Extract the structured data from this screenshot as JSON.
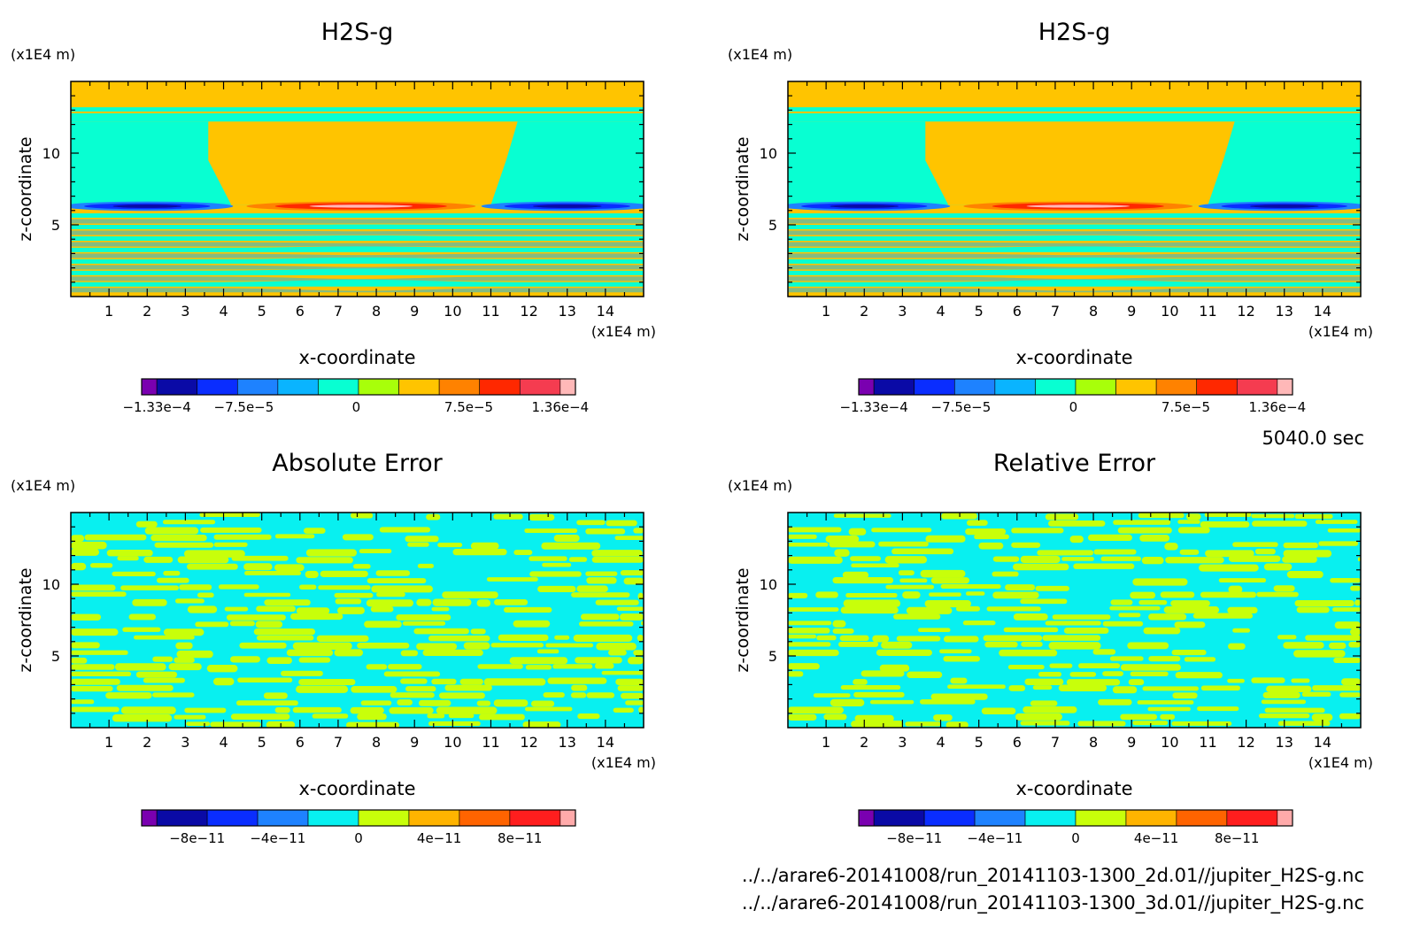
{
  "time_label": "5040.0 sec",
  "files": [
    "../../arare6-20141008/run_20141103-1300_2d.01//jupiter_H2S-g.nc",
    "../../arare6-20141008/run_20141103-1300_3d.01//jupiter_H2S-g.nc"
  ],
  "colors": {
    "levels": [
      "#7a00b0",
      "#0a0aa6",
      "#0a2dff",
      "#1e82ff",
      "#0ab4ff",
      "#08ffd2",
      "#a8ff0a",
      "#ffc400",
      "#ff8200",
      "#ff2800",
      "#f53c50",
      "#ffb8b8"
    ],
    "error_levels": [
      "#7a00b0",
      "#0a0aa6",
      "#0a2dff",
      "#1e82ff",
      "#08f0f0",
      "#c8ff0a",
      "#ffb400",
      "#ff6400",
      "#ff1e1e",
      "#ffaaaa"
    ]
  },
  "chart_data": [
    {
      "type": "heatmap",
      "title": "H2S-g",
      "xlabel": "x-coordinate",
      "ylabel": "z-coordinate",
      "x_unit": "(x1E4 m)",
      "y_unit": "(x1E4 m)",
      "xlim": [
        0,
        15
      ],
      "ylim": [
        0,
        15
      ],
      "x_ticks": [
        "1",
        "2",
        "3",
        "4",
        "5",
        "6",
        "7",
        "8",
        "9",
        "10",
        "11",
        "12",
        "13",
        "14"
      ],
      "y_ticks": [
        "5",
        "10"
      ],
      "colorbar_labels": [
        "-1.33e-4",
        "-7.5e-5",
        "0",
        "7.5e-5",
        "1.36e-4"
      ],
      "range": [
        -0.000133,
        0.000136
      ]
    },
    {
      "type": "heatmap",
      "title": "H2S-g",
      "xlabel": "x-coordinate",
      "ylabel": "z-coordinate",
      "x_unit": "(x1E4 m)",
      "y_unit": "(x1E4 m)",
      "xlim": [
        0,
        15
      ],
      "ylim": [
        0,
        15
      ],
      "x_ticks": [
        "1",
        "2",
        "3",
        "4",
        "5",
        "6",
        "7",
        "8",
        "9",
        "10",
        "11",
        "12",
        "13",
        "14"
      ],
      "y_ticks": [
        "5",
        "10"
      ],
      "colorbar_labels": [
        "-1.33e-4",
        "-7.5e-5",
        "0",
        "7.5e-5",
        "1.36e-4"
      ],
      "range": [
        -0.000133,
        0.000136
      ]
    },
    {
      "type": "heatmap",
      "title": "Absolute Error",
      "xlabel": "x-coordinate",
      "ylabel": "z-coordinate",
      "x_unit": "(x1E4 m)",
      "y_unit": "(x1E4 m)",
      "xlim": [
        0,
        15
      ],
      "ylim": [
        0,
        15
      ],
      "x_ticks": [
        "1",
        "2",
        "3",
        "4",
        "5",
        "6",
        "7",
        "8",
        "9",
        "10",
        "11",
        "12",
        "13",
        "14"
      ],
      "y_ticks": [
        "5",
        "10"
      ],
      "colorbar_labels": [
        "-8e-11",
        "-4e-11",
        "0",
        "4e-11",
        "8e-11"
      ],
      "range": [
        -1e-10,
        1e-10
      ]
    },
    {
      "type": "heatmap",
      "title": "Relative Error",
      "xlabel": "x-coordinate",
      "ylabel": "z-coordinate",
      "x_unit": "(x1E4 m)",
      "y_unit": "(x1E4 m)",
      "xlim": [
        0,
        15
      ],
      "ylim": [
        0,
        15
      ],
      "x_ticks": [
        "1",
        "2",
        "3",
        "4",
        "5",
        "6",
        "7",
        "8",
        "9",
        "10",
        "11",
        "12",
        "13",
        "14"
      ],
      "y_ticks": [
        "5",
        "10"
      ],
      "colorbar_labels": [
        "-8e-11",
        "-4e-11",
        "0",
        "4e-11",
        "8e-11"
      ],
      "range": [
        -1e-10,
        1e-10
      ]
    }
  ]
}
